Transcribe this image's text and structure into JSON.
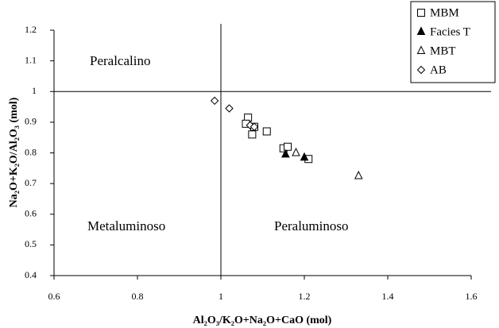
{
  "chart_data": {
    "type": "scatter",
    "x_label": "Al₂O₃/K₂O+Na₂O+CaO (mol)",
    "y_label": "Na₂O+K₂O/Al₂O₃ (mol)",
    "xlim": [
      0.6,
      1.6
    ],
    "xticks": [
      0.6,
      0.8,
      1,
      1.2,
      1.4,
      1.6
    ],
    "ylim": [
      0.4,
      1.2
    ],
    "yticks": [
      0.4,
      0.5,
      0.6,
      0.7,
      0.8,
      0.9,
      1,
      1.1,
      1.2
    ],
    "vline": 1,
    "hline": 1,
    "annotations": [
      "Peralcalino",
      "Metaluminoso",
      "Peraluminoso"
    ],
    "legend": "top-right",
    "series": [
      {
        "name": "MBM",
        "marker": "square",
        "filled": false,
        "color": "#000000",
        "x": [
          1.065,
          1.06,
          1.08,
          1.075,
          1.11,
          1.15,
          1.16,
          1.21
        ],
        "values": [
          0.915,
          0.895,
          0.885,
          0.86,
          0.87,
          0.815,
          0.82,
          0.78
        ]
      },
      {
        "name": "Facies T",
        "marker": "triangle",
        "filled": true,
        "color": "#000000",
        "x": [
          1.155,
          1.2
        ],
        "values": [
          0.795,
          0.785
        ]
      },
      {
        "name": "MBT",
        "marker": "triangle",
        "filled": false,
        "color": "#000000",
        "x": [
          1.18,
          1.33
        ],
        "values": [
          0.8,
          0.725
        ]
      },
      {
        "name": "AB",
        "marker": "diamond",
        "filled": false,
        "color": "#000000",
        "x": [
          0.985,
          1.02,
          1.07,
          1.08
        ],
        "values": [
          0.97,
          0.945,
          0.89,
          0.885
        ]
      }
    ]
  }
}
